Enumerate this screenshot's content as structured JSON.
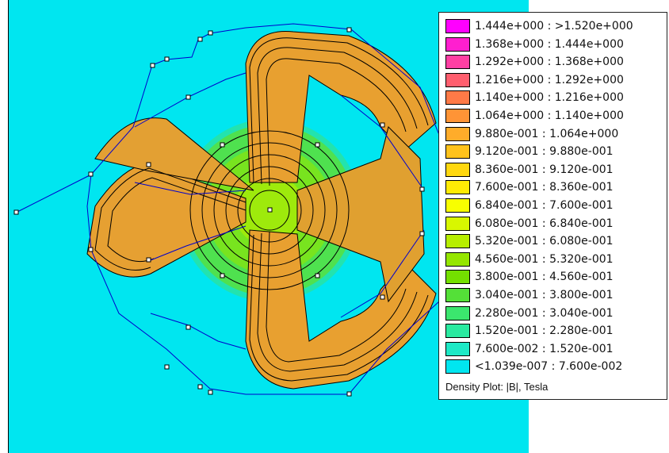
{
  "legend": {
    "caption": "Density Plot: |B|, Tesla",
    "entries": [
      {
        "label": "1.444e+000 : >1.520e+000",
        "color": "#ff00ff"
      },
      {
        "label": "1.368e+000 : 1.444e+000",
        "color": "#ff1fcf"
      },
      {
        "label": "1.292e+000 : 1.368e+000",
        "color": "#ff3fa3"
      },
      {
        "label": "1.216e+000 : 1.292e+000",
        "color": "#ff5e6e"
      },
      {
        "label": "1.140e+000 : 1.216e+000",
        "color": "#ff7a47"
      },
      {
        "label": "1.064e+000 : 1.140e+000",
        "color": "#ff9436"
      },
      {
        "label": "9.880e-001 : 1.064e+000",
        "color": "#ffac2a"
      },
      {
        "label": "9.120e-001 : 9.880e-001",
        "color": "#ffc21b"
      },
      {
        "label": "8.360e-001 : 9.120e-001",
        "color": "#ffd80f"
      },
      {
        "label": "7.600e-001 : 8.360e-001",
        "color": "#ffeb05"
      },
      {
        "label": "6.840e-001 : 7.600e-001",
        "color": "#f8ff00"
      },
      {
        "label": "6.080e-001 : 6.840e-001",
        "color": "#d8f700"
      },
      {
        "label": "5.320e-001 : 6.080e-001",
        "color": "#b7ee00"
      },
      {
        "label": "4.560e-001 : 5.320e-001",
        "color": "#95e600"
      },
      {
        "label": "3.800e-001 : 4.560e-001",
        "color": "#74e000"
      },
      {
        "label": "3.040e-001 : 3.800e-001",
        "color": "#54e038"
      },
      {
        "label": "2.280e-001 : 3.040e-001",
        "color": "#3be66e"
      },
      {
        "label": "1.520e-001 : 2.280e-001",
        "color": "#2aeaa0"
      },
      {
        "label": "7.600e-002 : 1.520e-001",
        "color": "#1ee9c6"
      },
      {
        "label": "<1.039e-007 : 7.600e-002",
        "color": "#00e6f0"
      }
    ]
  },
  "colors": {
    "background": "#00e6f0",
    "contour": "#000000",
    "mesh": "#0000cc",
    "core_field": "#e0a030"
  }
}
